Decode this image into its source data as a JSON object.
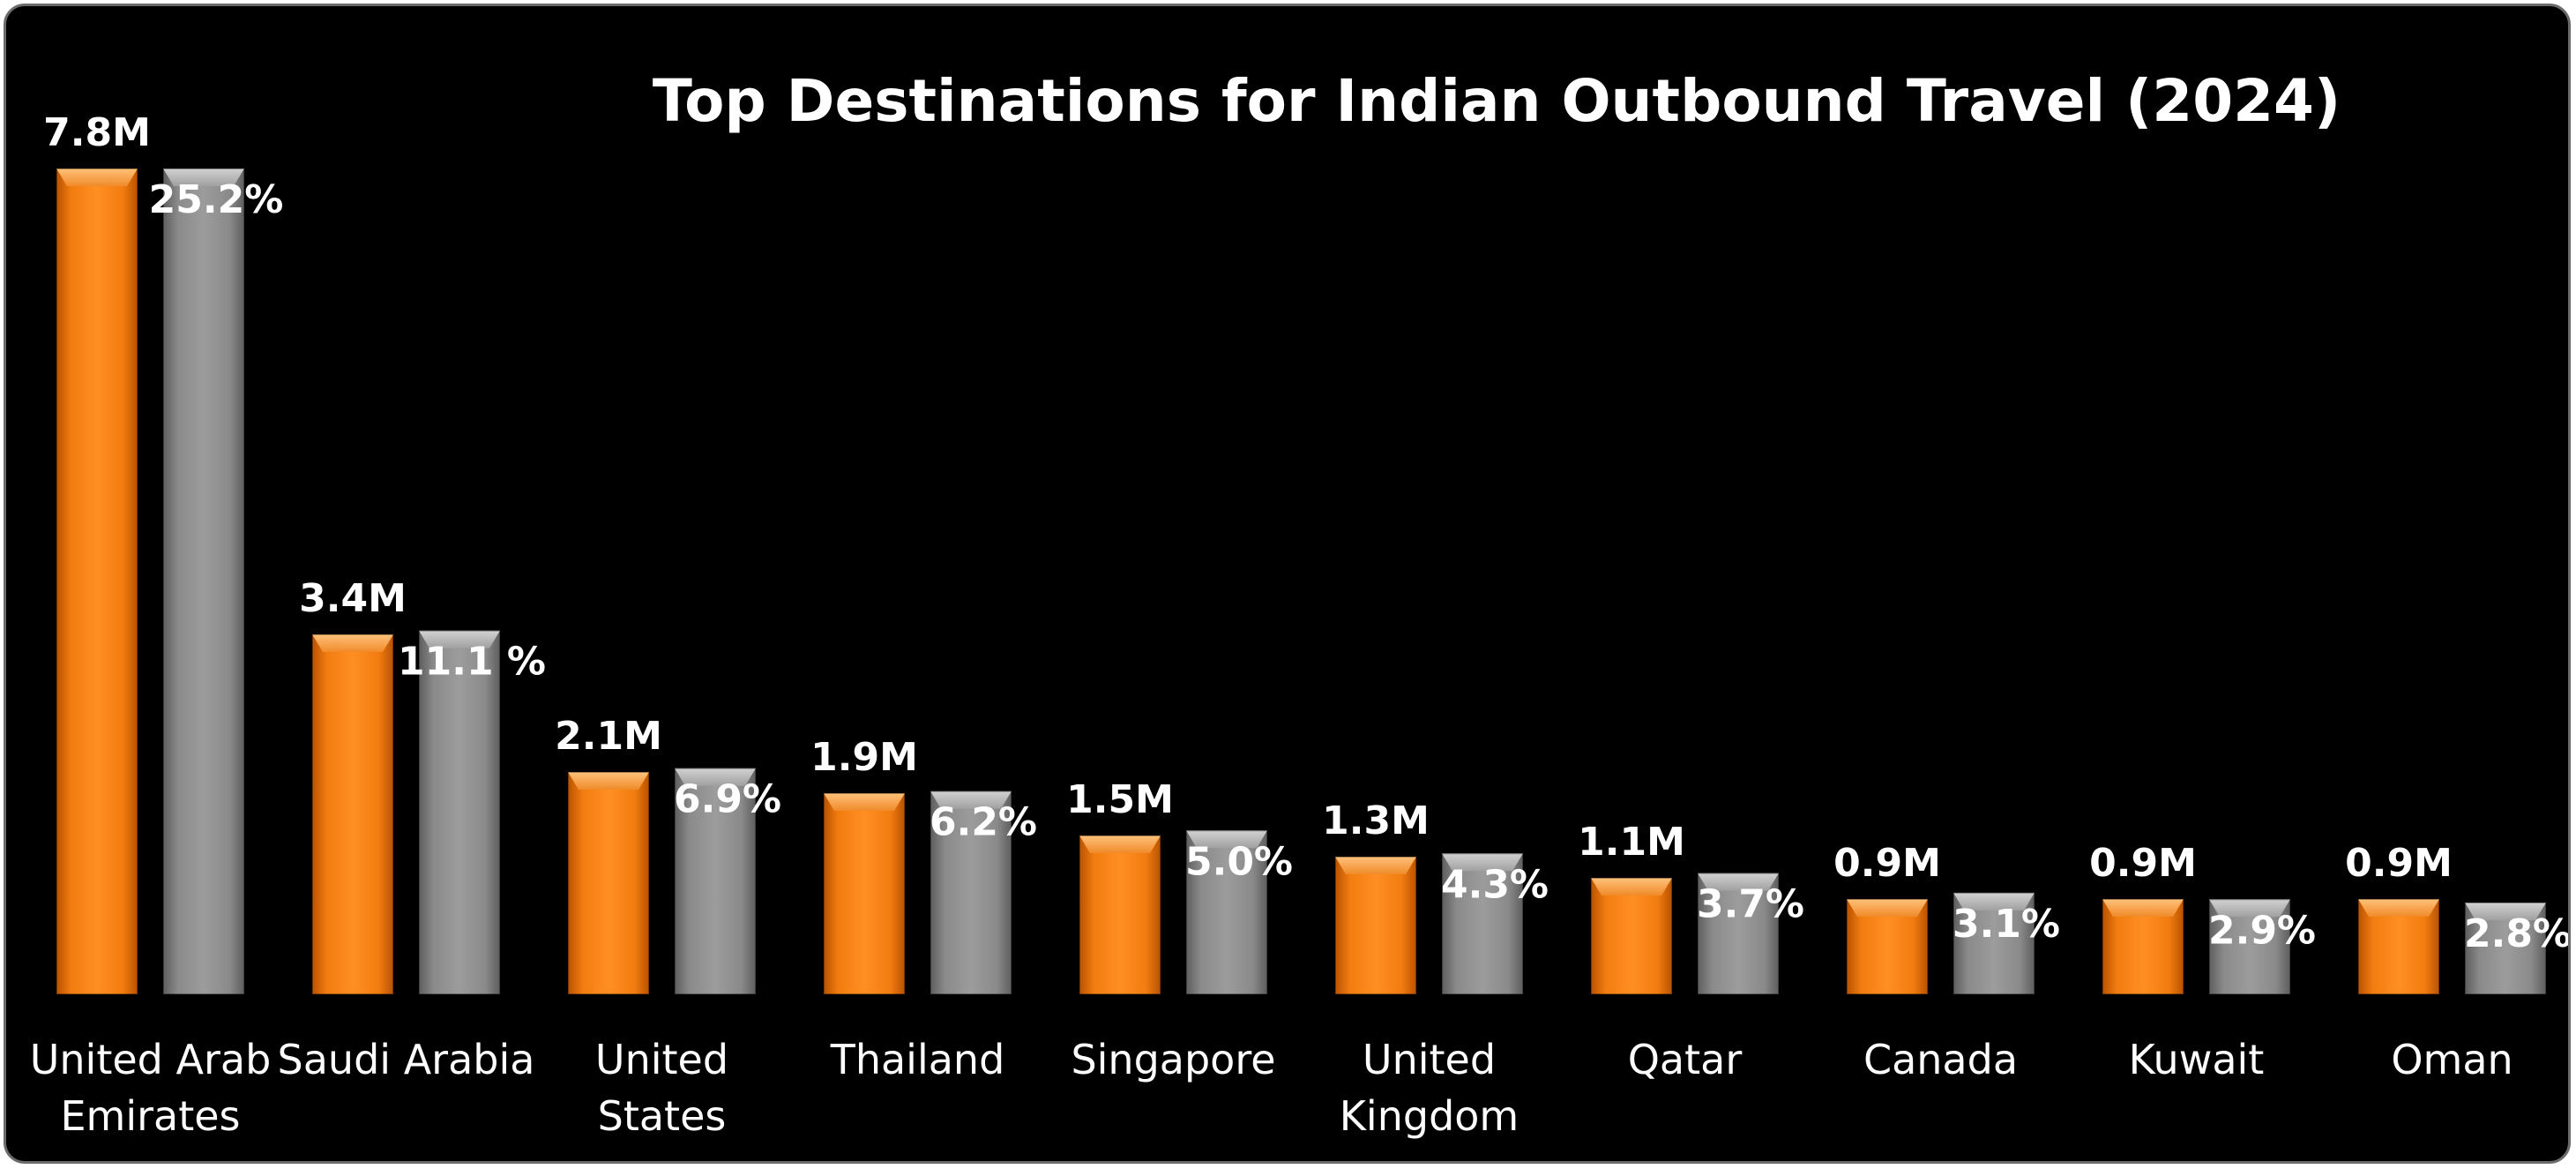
{
  "chart_data": {
    "type": "bar",
    "title": "Top Destinations for Indian Outbound Travel (2024)",
    "xlabel": "",
    "ylabel": "",
    "grid": false,
    "legend": "none",
    "categories": [
      [
        "United Arab",
        "Emirates"
      ],
      [
        "Saudi Arabia"
      ],
      [
        "United",
        "States"
      ],
      [
        "Thailand"
      ],
      [
        "Singapore"
      ],
      [
        "United",
        "Kingdom"
      ],
      [
        "Qatar"
      ],
      [
        "Canada"
      ],
      [
        "Kuwait"
      ],
      [
        "Oman"
      ]
    ],
    "series": [
      {
        "values": [
          7.8,
          3.4,
          2.1,
          1.9,
          1.5,
          1.3,
          1.1,
          0.9,
          0.9,
          0.9
        ],
        "labels": [
          "7.8M",
          "3.4M",
          "2.1M",
          "1.9M",
          "1.5M",
          "1.3M",
          "1.1M",
          "0.9M",
          "0.9M",
          "0.9M"
        ],
        "color": "#f07a10"
      },
      {
        "values": [
          25.2,
          11.1,
          6.9,
          6.2,
          5.0,
          4.3,
          3.7,
          3.1,
          2.9,
          2.8
        ],
        "labels": [
          "25.2%",
          "11.1 %",
          "6.9%",
          "6.2%",
          "5.0%",
          "4.3%",
          "3.7%",
          "3.1%",
          "2.9%",
          "2.8%"
        ],
        "color": "#8e8e8e"
      }
    ]
  }
}
